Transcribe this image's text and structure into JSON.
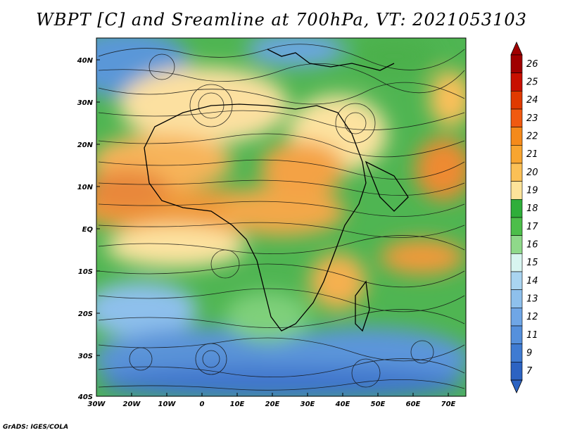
{
  "title": "WBPT [C] and Sreamline at 700hPa, VT: 2021053103",
  "credit": "GrADS: IGES/COLA",
  "map": {
    "lon_labels": [
      "30W",
      "20W",
      "10W",
      "0",
      "10E",
      "20E",
      "30E",
      "40E",
      "50E",
      "60E",
      "70E"
    ],
    "lat_labels": [
      "40N",
      "30N",
      "20N",
      "10N",
      "EQ",
      "10S",
      "20S",
      "30S",
      "40S"
    ],
    "lon_range": [
      -30,
      75
    ],
    "lat_range": [
      -40,
      45
    ],
    "fields": [
      "wet-bulb potential temperature (shaded)",
      "streamlines (black)"
    ]
  },
  "colorbar": {
    "labels": [
      "26",
      "25",
      "24",
      "23",
      "22",
      "21",
      "20",
      "19",
      "18",
      "17",
      "16",
      "15",
      "14",
      "13",
      "12",
      "11",
      "9",
      "7"
    ],
    "colors": [
      "#a00000",
      "#c81000",
      "#e03a00",
      "#f05a10",
      "#f58a1a",
      "#f8a530",
      "#fbc056",
      "#fde39a",
      "#2fae3a",
      "#4dbe4a",
      "#8fd98a",
      "#d8f5f0",
      "#a9d4f0",
      "#8ec0ec",
      "#6fa6e6",
      "#5590dc",
      "#3f7bd2",
      "#2c63c2"
    ]
  },
  "legend_colors": {
    "ocean_cool": "#5b93d8",
    "ocean_warm": "#f2a644",
    "land_green": "#3aa94a"
  }
}
